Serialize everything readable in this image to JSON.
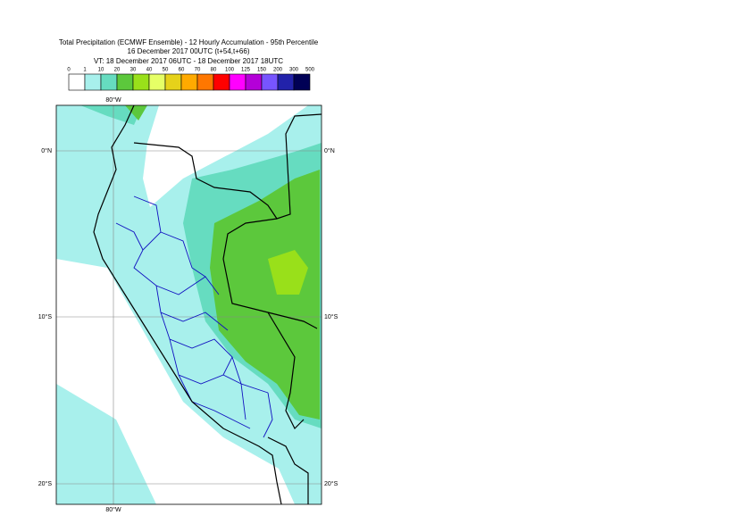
{
  "header": {
    "title": [
      "Total Precipitation (ECMWF Ensemble) - 12 Hourly Accumulation - 95th Percentile",
      "16 December 2017 00UTC (t+54,t+66)",
      "VT: 18 December 2017 06UTC - 18 December 2017 18UTC"
    ]
  },
  "legend": {
    "labels": [
      "0",
      "1",
      "10",
      "20",
      "30",
      "40",
      "50",
      "60",
      "70",
      "80",
      "100",
      "125",
      "150",
      "200",
      "300",
      "500"
    ],
    "colors": [
      "#ffffff",
      "#a8f0ec",
      "#66dcc0",
      "#5cc83c",
      "#99e01a",
      "#e6ff66",
      "#e6d21a",
      "#ffaa00",
      "#ff7700",
      "#ff0000",
      "#ff00ff",
      "#b400d8",
      "#7755ff",
      "#2222aa",
      "#000055"
    ]
  },
  "map": {
    "lat_labels": [
      "0°N",
      "10°S",
      "20°S"
    ],
    "lon_label": "80°W"
  }
}
